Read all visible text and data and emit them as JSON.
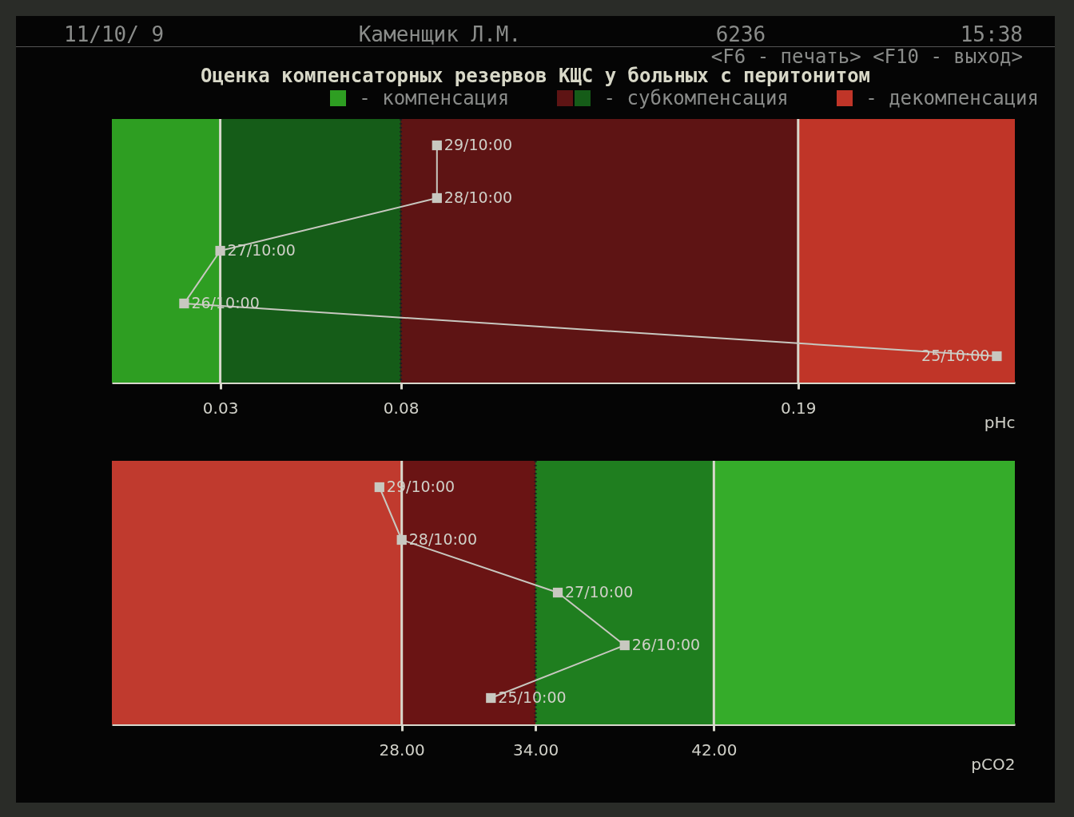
{
  "chart_data": [
    {
      "type": "line",
      "orientation": "horizontal",
      "title": "Оценка компенсаторных резервов КЩС у больных с перитонитом",
      "annotations": [
        "11/10/ 9",
        "Каменщик Л.М.",
        "6236",
        "15:38",
        "<F6 - печать> <F10 - выход>"
      ],
      "legend": "top",
      "tick_labels": "x",
      "marker": "square",
      "line_style": "solid",
      "xlabel": "pHc",
      "xlim": [
        0,
        0.25
      ],
      "xticks": [
        0.03,
        0.08,
        0.19
      ],
      "categories": [
        null,
        null,
        null,
        null,
        null
      ],
      "series": [
        {
          "color": "#c8c8c0",
          "values": [
            0.09,
            0.09,
            0.03,
            0.02,
            0.245
          ],
          "value_labels": [
            "29/10:00",
            "28/10:00",
            "27/10:00",
            "26/10:00",
            "25/10:00"
          ]
        }
      ],
      "bands": [
        {
          "axis": "x",
          "from": 0,
          "to": 0.03,
          "label": "- компенсация",
          "color": "#2e9e22"
        },
        {
          "axis": "x",
          "from": 0.03,
          "to": 0.08,
          "color": "#155c18"
        },
        {
          "axis": "x",
          "from": 0.08,
          "to": 0.19,
          "label": "- субкомпенсация",
          "color": "#5e1414"
        },
        {
          "axis": "x",
          "from": 0.19,
          "to": 0.25,
          "label": "- декомпенсация",
          "color": "#c03528"
        }
      ],
      "ref_lines": [
        {
          "axis": "x",
          "value": 0.03,
          "color": "#d8d8cc",
          "line_style": "solid"
        },
        {
          "axis": "x",
          "value": 0.08,
          "color": "#202020",
          "line_style": "dotted"
        },
        {
          "axis": "x",
          "value": 0.19,
          "color": "#d8d8cc",
          "line_style": "solid"
        }
      ]
    },
    {
      "type": "line",
      "orientation": "horizontal",
      "tick_labels": "x",
      "marker": "square",
      "line_style": "solid",
      "xlabel": "pCO2",
      "xlim": [
        15,
        55.5
      ],
      "xticks": [
        {
          "value": 28,
          "label": "28.00"
        },
        {
          "value": 34,
          "label": "34.00"
        },
        {
          "value": 42,
          "label": "42.00"
        }
      ],
      "categories": [
        null,
        null,
        null,
        null,
        null
      ],
      "series": [
        {
          "color": "#c8c8c0",
          "values": [
            27,
            28,
            35,
            38,
            32
          ],
          "value_labels": [
            "29/10:00",
            "28/10:00",
            "27/10:00",
            "26/10:00",
            "25/10:00"
          ]
        }
      ],
      "bands": [
        {
          "axis": "x",
          "from": 15,
          "to": 28,
          "color": "#c03a2e"
        },
        {
          "axis": "x",
          "from": 28,
          "to": 34,
          "color": "#6a1414"
        },
        {
          "axis": "x",
          "from": 34,
          "to": 42,
          "color": "#1f7e1f"
        },
        {
          "axis": "x",
          "from": 42,
          "to": 55.5,
          "color": "#35ac2a"
        }
      ],
      "ref_lines": [
        {
          "axis": "x",
          "value": 28,
          "color": "#d8d8cc",
          "line_style": "solid"
        },
        {
          "axis": "x",
          "value": 34,
          "color": "#202020",
          "line_style": "dotted"
        },
        {
          "axis": "x",
          "value": 42,
          "color": "#d8d8cc",
          "line_style": "solid"
        }
      ]
    }
  ]
}
